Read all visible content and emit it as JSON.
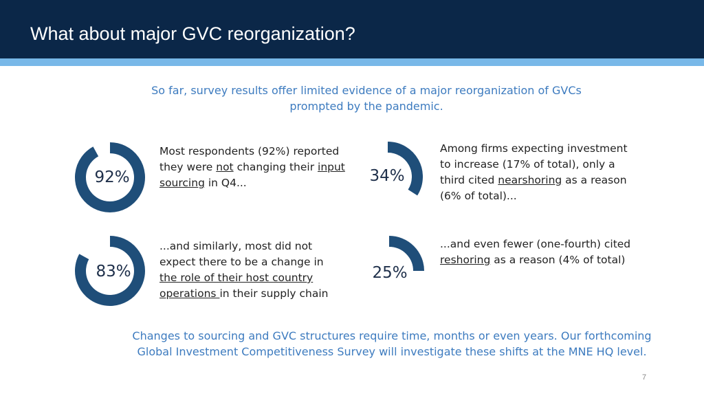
{
  "slide": {
    "title": "What about major GVC reorganization?",
    "subtitle": "So far, survey results offer limited evidence of a major reorganization of GVCs prompted by the pandemic.",
    "page_number": "7",
    "footer": "Changes to sourcing and GVC structures require time, months or even years. Our forthcoming Global Investment Competitiveness Survey will investigate these shifts at the MNE HQ level."
  },
  "colors": {
    "header_bg": "#0b2748",
    "header_stripe": "#78b8e8",
    "accent_text": "#3d7bbf",
    "donut_fill": "#1f4e79"
  },
  "stats": [
    {
      "percent_label": "92%",
      "value": 0.92,
      "text_parts": [
        "Most respondents (92%) reported they were ",
        "not",
        " changing their ",
        "input sourcing",
        " in Q4..."
      ]
    },
    {
      "percent_label": "34%",
      "value": 0.34,
      "text_parts": [
        "Among firms expecting investment to increase (17% of total), only a third cited ",
        "nearshoring",
        " as a reason (6% of total)..."
      ]
    },
    {
      "percent_label": "83%",
      "value": 0.83,
      "text_parts": [
        "...and similarly, most did not expect there to be a change in ",
        "the role of their host country operations ",
        "in their supply chain"
      ]
    },
    {
      "percent_label": "25%",
      "value": 0.25,
      "text_parts": [
        "...and even fewer (one-fourth) cited ",
        "reshoring",
        " as a reason (4% of total)"
      ]
    }
  ]
}
